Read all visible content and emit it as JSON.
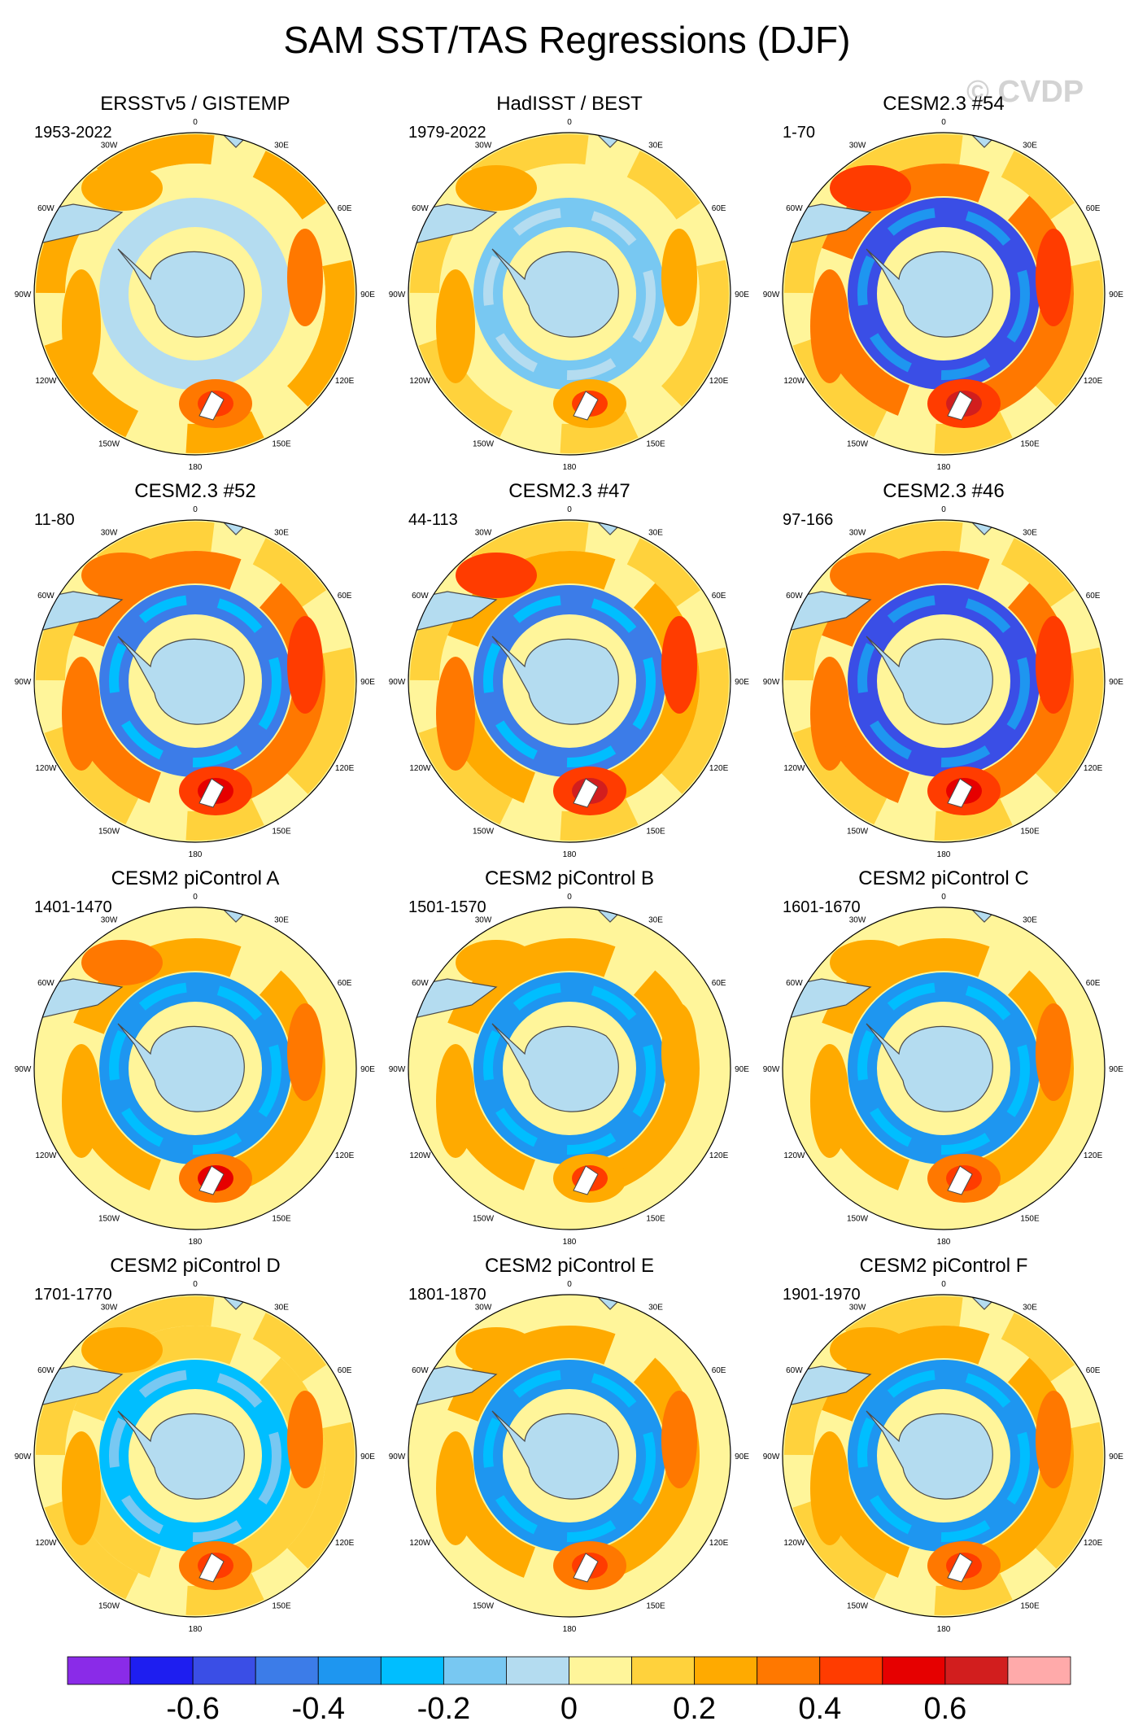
{
  "title": "SAM SST/TAS Regressions (DJF)",
  "watermark": "© CVDP",
  "chart_data": {
    "type": "heatmap",
    "projection": "south polar stereographic",
    "season": "DJF",
    "longitude_labels": [
      "0",
      "30E",
      "60E",
      "90E",
      "120E",
      "150E",
      "180",
      "150W",
      "120W",
      "90W",
      "60W",
      "30W"
    ],
    "panels": [
      {
        "title": "ERSSTv5 / GISTEMP",
        "years": "1953-2022",
        "band_strength": [
          0.25,
          -0.1,
          0.3
        ]
      },
      {
        "title": "HadISST / BEST",
        "years": "1979-2022",
        "band_strength": [
          0.1,
          -0.15,
          0.25
        ]
      },
      {
        "title": "CESM2.3 #54",
        "years": "1-70",
        "band_strength": [
          0.1,
          -0.55,
          0.45
        ]
      },
      {
        "title": "CESM2.3 #52",
        "years": "11-80",
        "band_strength": [
          0.1,
          -0.5,
          0.4
        ]
      },
      {
        "title": "CESM2.3 #47",
        "years": "44-113",
        "band_strength": [
          0.15,
          -0.45,
          0.45
        ]
      },
      {
        "title": "CESM2.3 #46",
        "years": "97-166",
        "band_strength": [
          0.1,
          -0.55,
          0.4
        ]
      },
      {
        "title": "CESM2 piControl A",
        "years": "1401-1470",
        "band_strength": [
          0.05,
          -0.35,
          0.35
        ]
      },
      {
        "title": "CESM2 piControl B",
        "years": "1501-1570",
        "band_strength": [
          0.05,
          -0.35,
          0.25
        ]
      },
      {
        "title": "CESM2 piControl C",
        "years": "1601-1670",
        "band_strength": [
          0.05,
          -0.35,
          0.3
        ]
      },
      {
        "title": "CESM2 piControl D",
        "years": "1701-1770",
        "band_strength": [
          0.1,
          -0.3,
          0.3
        ]
      },
      {
        "title": "CESM2 piControl E",
        "years": "1801-1870",
        "band_strength": [
          0.05,
          -0.4,
          0.3
        ]
      },
      {
        "title": "CESM2 piControl F",
        "years": "1901-1970",
        "band_strength": [
          0.1,
          -0.4,
          0.3
        ]
      }
    ],
    "colorbar": {
      "levels": [
        -0.7,
        -0.6,
        -0.5,
        -0.4,
        -0.3,
        -0.2,
        -0.1,
        0,
        0.1,
        0.2,
        0.3,
        0.4,
        0.5,
        0.6,
        0.7
      ],
      "colors": [
        "#8a2be8",
        "#1e1ef0",
        "#3a4ee6",
        "#3c7ce8",
        "#1e96f0",
        "#00beff",
        "#78c8f2",
        "#b4dcf0",
        "#fff59a",
        "#ffd23c",
        "#ffaa00",
        "#ff7800",
        "#ff3c00",
        "#e60000",
        "#d21e1e",
        "#ffaaaa"
      ],
      "tick_labels": [
        "-0.6",
        "-0.4",
        "-0.2",
        "0",
        "0.2",
        "0.4",
        "0.6"
      ],
      "tick_values": [
        -0.6,
        -0.4,
        -0.2,
        0,
        0.2,
        0.4,
        0.6
      ]
    }
  }
}
